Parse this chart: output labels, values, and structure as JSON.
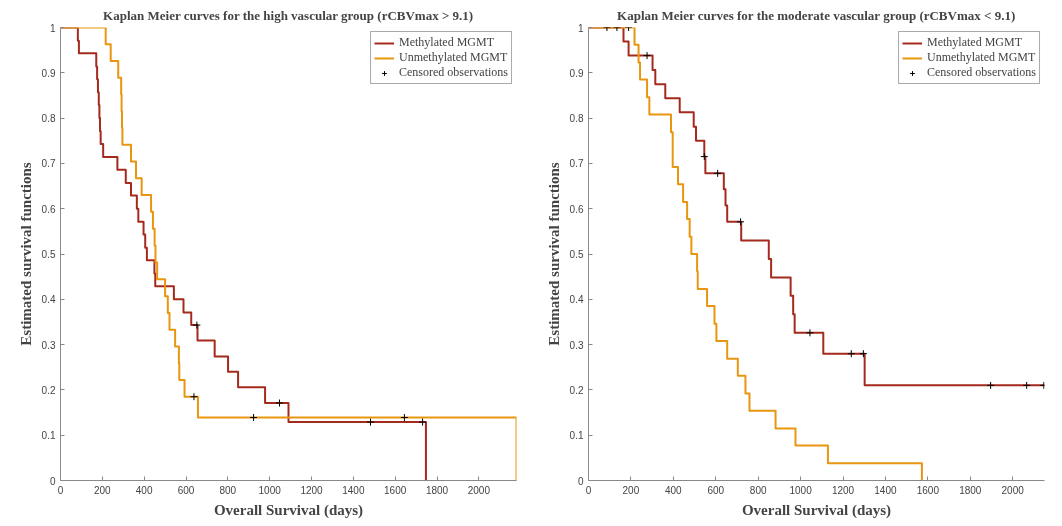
{
  "chart_data": [
    {
      "type": "step",
      "title": "Kaplan Meier curves for the high vascular group (rCBVmax > 9.1)",
      "xlabel": "Overall Survival (days)",
      "ylabel": "Estimated survival functions",
      "xlim": [
        0,
        2180
      ],
      "ylim": [
        0,
        1
      ],
      "xticks": [
        0,
        200,
        400,
        600,
        800,
        1000,
        1200,
        1400,
        1600,
        1800,
        2000
      ],
      "yticks": [
        0,
        0.1,
        0.2,
        0.3,
        0.4,
        0.5,
        0.6,
        0.7,
        0.8,
        0.9,
        1
      ],
      "grid": false,
      "legend": "top right",
      "series": [
        {
          "name": "Methylated MGMT",
          "color": "#a52a1e",
          "x": [
            0,
            83,
            88,
            171,
            175,
            179,
            183,
            186,
            189,
            192,
            204,
            272,
            312,
            337,
            365,
            372,
            397,
            405,
            413,
            449,
            453,
            542,
            588,
            625,
            655,
            737,
            801,
            849,
            978,
            1090,
            1747
          ],
          "values": [
            1,
            0.971,
            0.943,
            0.914,
            0.886,
            0.857,
            0.829,
            0.8,
            0.771,
            0.743,
            0.714,
            0.686,
            0.657,
            0.629,
            0.6,
            0.571,
            0.543,
            0.514,
            0.486,
            0.457,
            0.429,
            0.4,
            0.371,
            0.343,
            0.309,
            0.274,
            0.24,
            0.206,
            0.171,
            0.129,
            0
          ]
        },
        {
          "name": "Unmethylated MGMT",
          "color": "#e8960f",
          "x": [
            0,
            216,
            240,
            276,
            290,
            292,
            294,
            296,
            337,
            361,
            388,
            433,
            442,
            450,
            454,
            462,
            500,
            513,
            521,
            548,
            566,
            568,
            593,
            657,
            2180
          ],
          "values": [
            1,
            0.963,
            0.926,
            0.889,
            0.852,
            0.815,
            0.778,
            0.741,
            0.704,
            0.667,
            0.63,
            0.593,
            0.556,
            0.519,
            0.481,
            0.444,
            0.407,
            0.37,
            0.333,
            0.296,
            0.259,
            0.222,
            0.185,
            0.139,
            0
          ]
        },
        {
          "name": "Censored observations",
          "type": "scatter",
          "marker": "cross",
          "color": "#000000",
          "x": [
            652,
            1047,
            1482,
            1731,
            638,
            923,
            1644
          ],
          "values": [
            0.343,
            0.171,
            0.129,
            0.129,
            0.185,
            0.139,
            0.139
          ]
        }
      ]
    },
    {
      "type": "step",
      "title": "Kaplan Meier curves for the moderate vascular group (rCBVmax < 9.1)",
      "xlabel": "Overall Survival (days)",
      "ylabel": "Estimated survival functions",
      "xlim": [
        0,
        2150
      ],
      "ylim": [
        0,
        1
      ],
      "xticks": [
        0,
        200,
        400,
        600,
        800,
        1000,
        1200,
        1400,
        1600,
        1800,
        2000
      ],
      "yticks": [
        0,
        0.1,
        0.2,
        0.3,
        0.4,
        0.5,
        0.6,
        0.7,
        0.8,
        0.9,
        1
      ],
      "grid": false,
      "legend": "top right",
      "series": [
        {
          "name": "Methylated MGMT",
          "color": "#a52a1e",
          "x": [
            0,
            165,
            189,
            302,
            315,
            362,
            430,
            496,
            507,
            546,
            551,
            638,
            646,
            654,
            720,
            850,
            861,
            953,
            965,
            972,
            1107,
            1302,
            2150
          ],
          "values": [
            1,
            0.969,
            0.938,
            0.906,
            0.875,
            0.844,
            0.813,
            0.781,
            0.75,
            0.715,
            0.678,
            0.643,
            0.607,
            0.571,
            0.53,
            0.489,
            0.448,
            0.408,
            0.367,
            0.326,
            0.28,
            0.21,
            0.21
          ]
        },
        {
          "name": "Unmethylated MGMT",
          "color": "#e8960f",
          "x": [
            0,
            217,
            236,
            243,
            276,
            287,
            389,
            397,
            422,
            446,
            465,
            477,
            485,
            512,
            515,
            559,
            594,
            603,
            654,
            704,
            740,
            759,
            882,
            976,
            1129,
            1572
          ],
          "values": [
            1,
            0.962,
            0.923,
            0.885,
            0.846,
            0.808,
            0.769,
            0.692,
            0.654,
            0.615,
            0.577,
            0.538,
            0.5,
            0.462,
            0.423,
            0.385,
            0.346,
            0.308,
            0.269,
            0.231,
            0.192,
            0.154,
            0.115,
            0.077,
            0.038,
            0
          ]
        },
        {
          "name": "Censored observations",
          "type": "scatter",
          "marker": "cross",
          "color": "#000000",
          "x": [
            87,
            134,
            189,
            276,
            546,
            609,
            717,
            1044,
            1239,
            1296,
            1896,
            2066,
            2147
          ],
          "values": [
            1,
            1,
            1,
            0.938,
            0.715,
            0.678,
            0.571,
            0.326,
            0.28,
            0.28,
            0.21,
            0.21,
            0.21
          ]
        }
      ]
    }
  ]
}
